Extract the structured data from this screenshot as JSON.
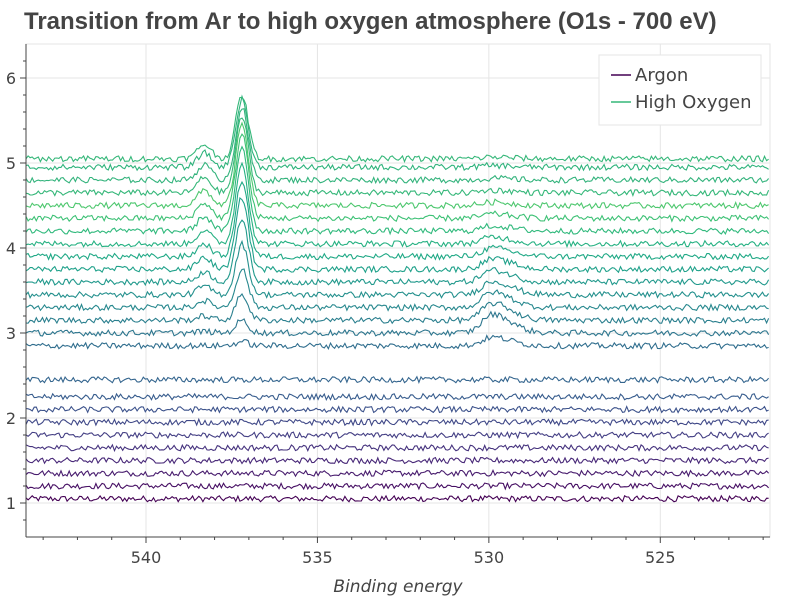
{
  "chart_data": {
    "type": "line",
    "title": "Transition from Ar to high oxygen atmosphere (O1s - 700 eV)",
    "xlabel": "Binding energy",
    "ylabel": "",
    "x_reversed": true,
    "xlim": [
      543.5,
      521.8
    ],
    "ylim": [
      0.6,
      6.4
    ],
    "x_ticks": [
      540,
      535,
      530,
      525
    ],
    "y_ticks": [
      1,
      2,
      3,
      4,
      5,
      6
    ],
    "grid": true,
    "legend_position": "top-right",
    "legend": [
      {
        "name": "Argon",
        "color": "#440154"
      },
      {
        "name": "High Oxygen",
        "color": "#35b779"
      }
    ],
    "series_count": 26,
    "offsets": [
      1.05,
      1.2,
      1.35,
      1.5,
      1.65,
      1.8,
      1.95,
      2.1,
      2.25,
      2.45,
      2.85,
      3.0,
      3.15,
      3.3,
      3.45,
      3.6,
      3.75,
      3.9,
      4.05,
      4.2,
      4.35,
      4.5,
      4.65,
      4.8,
      4.95,
      5.05
    ],
    "peak_o2_gas": {
      "x": 537.2,
      "heights": [
        0,
        0,
        0,
        0,
        0,
        0,
        0,
        0,
        0,
        0,
        0.05,
        0.15,
        0.3,
        0.45,
        0.6,
        0.75,
        0.85,
        0.9,
        0.95,
        1.0,
        1.0,
        0.95,
        0.9,
        0.85,
        0.8,
        0.75
      ]
    },
    "peak_o2_shoulder": {
      "x": 538.3,
      "heights": [
        0,
        0,
        0,
        0,
        0,
        0,
        0,
        0,
        0,
        0,
        0,
        0.02,
        0.05,
        0.08,
        0.1,
        0.12,
        0.14,
        0.15,
        0.16,
        0.17,
        0.18,
        0.18,
        0.18,
        0.18,
        0.17,
        0.17
      ]
    },
    "peak_530": {
      "x": 529.9,
      "heights": [
        0,
        0,
        0,
        0,
        0,
        0,
        0,
        0,
        0,
        0,
        0.1,
        0.22,
        0.2,
        0.18,
        0.16,
        0.14,
        0.12,
        0.1,
        0.08,
        0.06,
        0.05,
        0.04,
        0.03,
        0.02,
        0.02,
        0.02
      ]
    },
    "colors": [
      "#440154",
      "#471064",
      "#481c6e",
      "#482878",
      "#46337e",
      "#443f84",
      "#404988",
      "#3c528b",
      "#375c8d",
      "#34658e",
      "#306e8e",
      "#2d768e",
      "#2a7f8e",
      "#27888e",
      "#24908d",
      "#21998c",
      "#1fa18a",
      "#20a986",
      "#26b182",
      "#30b97c",
      "#3dc175",
      "#4dc76e",
      "#35b779",
      "#33b37c",
      "#2fb37c",
      "#35b779"
    ]
  }
}
